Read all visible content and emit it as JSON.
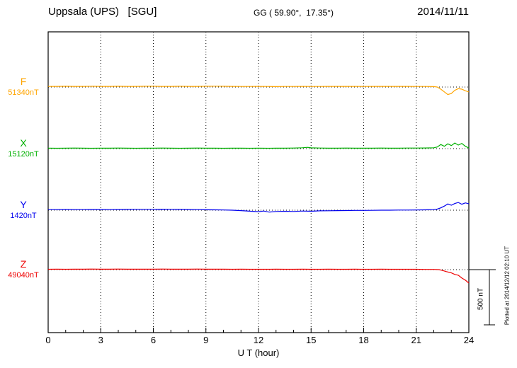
{
  "header": {
    "station": "Uppsala (UPS)   [SGU]",
    "coords": "GG ( 59.90°,  17.35°)",
    "date": "2014/11/11"
  },
  "footer": {
    "xlabel": "U T (hour)",
    "plotted_note": "Plotted at 2014/12/12 02:10 UT"
  },
  "scalebar": {
    "label": "500 nT",
    "nT": 500
  },
  "chart_data": {
    "type": "line",
    "title": "Uppsala (UPS) [SGU] magnetogram 2014/11/11",
    "xlabel": "U T (hour)",
    "x_range": [
      0,
      24
    ],
    "x_ticks": [
      0,
      3,
      6,
      9,
      12,
      15,
      18,
      21,
      24
    ],
    "grid": "dotted vertical lines every 3 h; dotted horizontal baseline per component",
    "scale_bar_nT": 500,
    "note": "points are [UT hour, deviation in nT from component baseline]",
    "series": [
      {
        "name": "F",
        "baseline_label": "51340nT",
        "baseline_nT": 51340,
        "color": "#FFA500",
        "points": [
          [
            0,
            6
          ],
          [
            0.5,
            6
          ],
          [
            1,
            7
          ],
          [
            1.5,
            6
          ],
          [
            2,
            6
          ],
          [
            2.5,
            7
          ],
          [
            3,
            6
          ],
          [
            3.5,
            6
          ],
          [
            4,
            7
          ],
          [
            4.5,
            6
          ],
          [
            5,
            6
          ],
          [
            5.5,
            7
          ],
          [
            6,
            7
          ],
          [
            6.5,
            6
          ],
          [
            7,
            6
          ],
          [
            7.5,
            7
          ],
          [
            8,
            6
          ],
          [
            8.5,
            6
          ],
          [
            9,
            7
          ],
          [
            9.5,
            8
          ],
          [
            10,
            7
          ],
          [
            10.5,
            6
          ],
          [
            11,
            5
          ],
          [
            11.5,
            5
          ],
          [
            12,
            6
          ],
          [
            12.5,
            5
          ],
          [
            13,
            4
          ],
          [
            13.5,
            5
          ],
          [
            14,
            5
          ],
          [
            14.5,
            6
          ],
          [
            15,
            5
          ],
          [
            15.5,
            5
          ],
          [
            16,
            6
          ],
          [
            16.5,
            6
          ],
          [
            17,
            6
          ],
          [
            17.5,
            6
          ],
          [
            18,
            5
          ],
          [
            18.5,
            6
          ],
          [
            19,
            6
          ],
          [
            19.5,
            6
          ],
          [
            20,
            6
          ],
          [
            20.5,
            6
          ],
          [
            21,
            5
          ],
          [
            21.5,
            5
          ],
          [
            22,
            4
          ],
          [
            22.2,
            0
          ],
          [
            22.4,
            -20
          ],
          [
            22.6,
            -45
          ],
          [
            22.8,
            -70
          ],
          [
            23,
            -60
          ],
          [
            23.2,
            -30
          ],
          [
            23.4,
            -15
          ],
          [
            23.6,
            -20
          ],
          [
            23.8,
            -35
          ],
          [
            24,
            -45
          ]
        ]
      },
      {
        "name": "X",
        "baseline_label": "15120nT",
        "baseline_nT": 15120,
        "color": "#00B000",
        "points": [
          [
            0,
            4
          ],
          [
            0.5,
            3
          ],
          [
            1,
            4
          ],
          [
            1.5,
            5
          ],
          [
            2,
            4
          ],
          [
            2.5,
            3
          ],
          [
            3,
            4
          ],
          [
            3.5,
            4
          ],
          [
            4,
            5
          ],
          [
            4.5,
            4
          ],
          [
            5,
            3
          ],
          [
            5.5,
            4
          ],
          [
            6,
            4
          ],
          [
            6.5,
            5
          ],
          [
            7,
            4
          ],
          [
            7.5,
            3
          ],
          [
            8,
            4
          ],
          [
            8.5,
            5
          ],
          [
            9,
            4
          ],
          [
            9.5,
            4
          ],
          [
            10,
            3
          ],
          [
            10.5,
            4
          ],
          [
            11,
            4
          ],
          [
            11.5,
            3
          ],
          [
            12,
            4
          ],
          [
            12.5,
            3
          ],
          [
            13,
            4
          ],
          [
            13.5,
            4
          ],
          [
            14,
            5
          ],
          [
            14.5,
            8
          ],
          [
            14.8,
            12
          ],
          [
            15,
            7
          ],
          [
            15.5,
            5
          ],
          [
            16,
            4
          ],
          [
            16.5,
            4
          ],
          [
            17,
            5
          ],
          [
            17.5,
            4
          ],
          [
            18,
            4
          ],
          [
            18.5,
            4
          ],
          [
            19,
            5
          ],
          [
            19.5,
            4
          ],
          [
            20,
            4
          ],
          [
            20.5,
            5
          ],
          [
            21,
            5
          ],
          [
            21.5,
            6
          ],
          [
            22,
            8
          ],
          [
            22.2,
            15
          ],
          [
            22.4,
            38
          ],
          [
            22.6,
            22
          ],
          [
            22.8,
            45
          ],
          [
            23,
            28
          ],
          [
            23.2,
            52
          ],
          [
            23.4,
            33
          ],
          [
            23.6,
            48
          ],
          [
            23.8,
            22
          ],
          [
            24,
            6
          ]
        ]
      },
      {
        "name": "Y",
        "baseline_label": "1420nT",
        "baseline_nT": 1420,
        "color": "#0000EE",
        "points": [
          [
            0,
            5
          ],
          [
            0.5,
            5
          ],
          [
            1,
            6
          ],
          [
            1.5,
            5
          ],
          [
            2,
            5
          ],
          [
            2.5,
            6
          ],
          [
            3,
            6
          ],
          [
            3.5,
            5
          ],
          [
            4,
            6
          ],
          [
            4.5,
            7
          ],
          [
            5,
            8
          ],
          [
            5.5,
            8
          ],
          [
            6,
            8
          ],
          [
            6.5,
            9
          ],
          [
            7,
            8
          ],
          [
            7.5,
            7
          ],
          [
            8,
            6
          ],
          [
            8.5,
            5
          ],
          [
            9,
            4
          ],
          [
            9.5,
            3
          ],
          [
            10,
            2
          ],
          [
            10.5,
            0
          ],
          [
            11,
            -4
          ],
          [
            11.5,
            -9
          ],
          [
            12,
            -14
          ],
          [
            12.3,
            -8
          ],
          [
            12.6,
            -18
          ],
          [
            13,
            -12
          ],
          [
            13.5,
            -10
          ],
          [
            14,
            -12
          ],
          [
            14.5,
            -8
          ],
          [
            15,
            -10
          ],
          [
            15.5,
            -6
          ],
          [
            16,
            -5
          ],
          [
            16.5,
            -4
          ],
          [
            17,
            -3
          ],
          [
            17.5,
            -2
          ],
          [
            18,
            -2
          ],
          [
            18.5,
            -1
          ],
          [
            19,
            0
          ],
          [
            19.5,
            0
          ],
          [
            20,
            1
          ],
          [
            20.5,
            1
          ],
          [
            21,
            2
          ],
          [
            21.5,
            3
          ],
          [
            22,
            5
          ],
          [
            22.2,
            10
          ],
          [
            22.4,
            22
          ],
          [
            22.6,
            38
          ],
          [
            22.8,
            58
          ],
          [
            23,
            46
          ],
          [
            23.2,
            62
          ],
          [
            23.4,
            72
          ],
          [
            23.6,
            55
          ],
          [
            23.8,
            68
          ],
          [
            24,
            60
          ]
        ]
      },
      {
        "name": "Z",
        "baseline_label": "49040nT",
        "baseline_nT": 49040,
        "color": "#EE0000",
        "points": [
          [
            0,
            3
          ],
          [
            0.5,
            4
          ],
          [
            1,
            3
          ],
          [
            1.5,
            4
          ],
          [
            2,
            4
          ],
          [
            2.5,
            5
          ],
          [
            3,
            4
          ],
          [
            3.5,
            4
          ],
          [
            4,
            5
          ],
          [
            4.5,
            4
          ],
          [
            5,
            4
          ],
          [
            5.5,
            4
          ],
          [
            6,
            4
          ],
          [
            6.5,
            5
          ],
          [
            7,
            4
          ],
          [
            7.5,
            4
          ],
          [
            8,
            4
          ],
          [
            8.5,
            5
          ],
          [
            9,
            4
          ],
          [
            9.5,
            4
          ],
          [
            10,
            4
          ],
          [
            10.5,
            3
          ],
          [
            11,
            4
          ],
          [
            11.5,
            3
          ],
          [
            12,
            3
          ],
          [
            12.5,
            3
          ],
          [
            13,
            4
          ],
          [
            13.5,
            3
          ],
          [
            14,
            3
          ],
          [
            14.5,
            4
          ],
          [
            15,
            3
          ],
          [
            15.5,
            3
          ],
          [
            16,
            4
          ],
          [
            16.5,
            3
          ],
          [
            17,
            3
          ],
          [
            17.5,
            4
          ],
          [
            18,
            3
          ],
          [
            18.5,
            3
          ],
          [
            19,
            4
          ],
          [
            19.5,
            3
          ],
          [
            20,
            3
          ],
          [
            20.5,
            3
          ],
          [
            21,
            3
          ],
          [
            21.5,
            2
          ],
          [
            22,
            2
          ],
          [
            22.3,
            0
          ],
          [
            22.5,
            -8
          ],
          [
            22.7,
            -18
          ],
          [
            23,
            -30
          ],
          [
            23.2,
            -45
          ],
          [
            23.4,
            -52
          ],
          [
            23.6,
            -78
          ],
          [
            23.8,
            -98
          ],
          [
            24,
            -125
          ]
        ]
      }
    ]
  }
}
